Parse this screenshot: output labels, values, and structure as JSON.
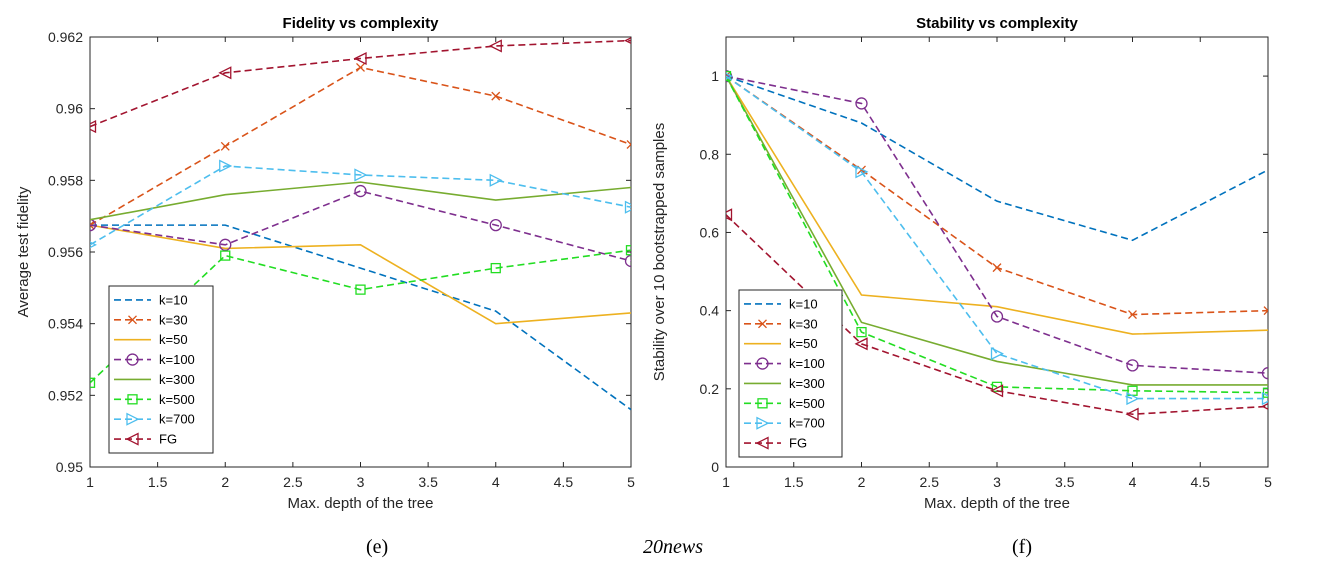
{
  "figure": {
    "caption_left": "(e)",
    "caption_center": "20news",
    "caption_right": "(f)"
  },
  "colors": {
    "k=10": "#0072BD",
    "k=30": "#D95319",
    "k=50": "#EDB120",
    "k=100": "#7E2F8E",
    "k=300": "#77AC30",
    "k=500": "#22DD22",
    "k=700": "#4DBEEE",
    "FG": "#A2142F"
  },
  "chart_data": [
    {
      "type": "line",
      "title": "Fidelity vs complexity",
      "xlabel": "Max. depth of the tree",
      "ylabel": "Average test fidelity",
      "xlim": [
        1,
        5
      ],
      "ylim": [
        0.95,
        0.962
      ],
      "xticks": [
        "1",
        "1.5",
        "2",
        "2.5",
        "3",
        "3.5",
        "4",
        "4.5",
        "5"
      ],
      "yticks": [
        "0.95",
        "0.952",
        "0.954",
        "0.956",
        "0.958",
        "0.96",
        "0.962"
      ],
      "x": [
        1,
        2,
        3,
        4,
        5
      ],
      "legend_position": "bottom-left",
      "series": [
        {
          "name": "k=10",
          "line": "dashed",
          "marker": "none",
          "values": [
            0.95675,
            0.95675,
            0.95555,
            0.95435,
            0.9516
          ]
        },
        {
          "name": "k=30",
          "line": "dashed",
          "marker": "x",
          "values": [
            0.95675,
            0.95895,
            0.96115,
            0.96035,
            0.959
          ]
        },
        {
          "name": "k=50",
          "line": "solid",
          "marker": "none",
          "values": [
            0.95675,
            0.9561,
            0.9562,
            0.954,
            0.9543
          ]
        },
        {
          "name": "k=100",
          "line": "dashed",
          "marker": "circle",
          "values": [
            0.95675,
            0.9562,
            0.9577,
            0.95675,
            0.95575
          ]
        },
        {
          "name": "k=300",
          "line": "solid",
          "marker": "none",
          "values": [
            0.9569,
            0.9576,
            0.95795,
            0.95745,
            0.9578
          ]
        },
        {
          "name": "k=500",
          "line": "dashed",
          "marker": "square",
          "values": [
            0.95235,
            0.9559,
            0.95495,
            0.95555,
            0.95605
          ]
        },
        {
          "name": "k=700",
          "line": "dashed",
          "marker": "triangle-right",
          "values": [
            0.9562,
            0.9584,
            0.95815,
            0.958,
            0.95725
          ]
        },
        {
          "name": "FG",
          "line": "dashed",
          "marker": "triangle-left",
          "values": [
            0.9595,
            0.961,
            0.9614,
            0.96175,
            0.9619
          ]
        }
      ]
    },
    {
      "type": "line",
      "title": "Stability vs complexity",
      "xlabel": "Max. depth of the tree",
      "ylabel": "Stability over 10 bootstrapped samples",
      "xlim": [
        1,
        5
      ],
      "ylim": [
        0,
        1.1
      ],
      "xticks": [
        "1",
        "1.5",
        "2",
        "2.5",
        "3",
        "3.5",
        "4",
        "4.5",
        "5"
      ],
      "yticks": [
        "0",
        "0.2",
        "0.4",
        "0.6",
        "0.8",
        "1"
      ],
      "x": [
        1,
        2,
        3,
        4,
        5
      ],
      "legend_position": "bottom-left",
      "series": [
        {
          "name": "k=10",
          "line": "dashed",
          "marker": "none",
          "values": [
            1.0,
            0.88,
            0.68,
            0.58,
            0.76
          ]
        },
        {
          "name": "k=30",
          "line": "dashed",
          "marker": "x",
          "values": [
            1.0,
            0.76,
            0.51,
            0.39,
            0.4
          ]
        },
        {
          "name": "k=50",
          "line": "solid",
          "marker": "none",
          "values": [
            1.0,
            0.44,
            0.41,
            0.34,
            0.35
          ]
        },
        {
          "name": "k=100",
          "line": "dashed",
          "marker": "circle",
          "values": [
            1.0,
            0.93,
            0.385,
            0.26,
            0.24
          ]
        },
        {
          "name": "k=300",
          "line": "solid",
          "marker": "none",
          "values": [
            1.0,
            0.37,
            0.27,
            0.21,
            0.21
          ]
        },
        {
          "name": "k=500",
          "line": "dashed",
          "marker": "square",
          "values": [
            1.0,
            0.345,
            0.205,
            0.195,
            0.19
          ]
        },
        {
          "name": "k=700",
          "line": "dashed",
          "marker": "triangle-right",
          "values": [
            1.0,
            0.755,
            0.29,
            0.175,
            0.175
          ]
        },
        {
          "name": "FG",
          "line": "dashed",
          "marker": "triangle-left",
          "values": [
            0.645,
            0.315,
            0.195,
            0.135,
            0.155
          ]
        }
      ]
    }
  ]
}
